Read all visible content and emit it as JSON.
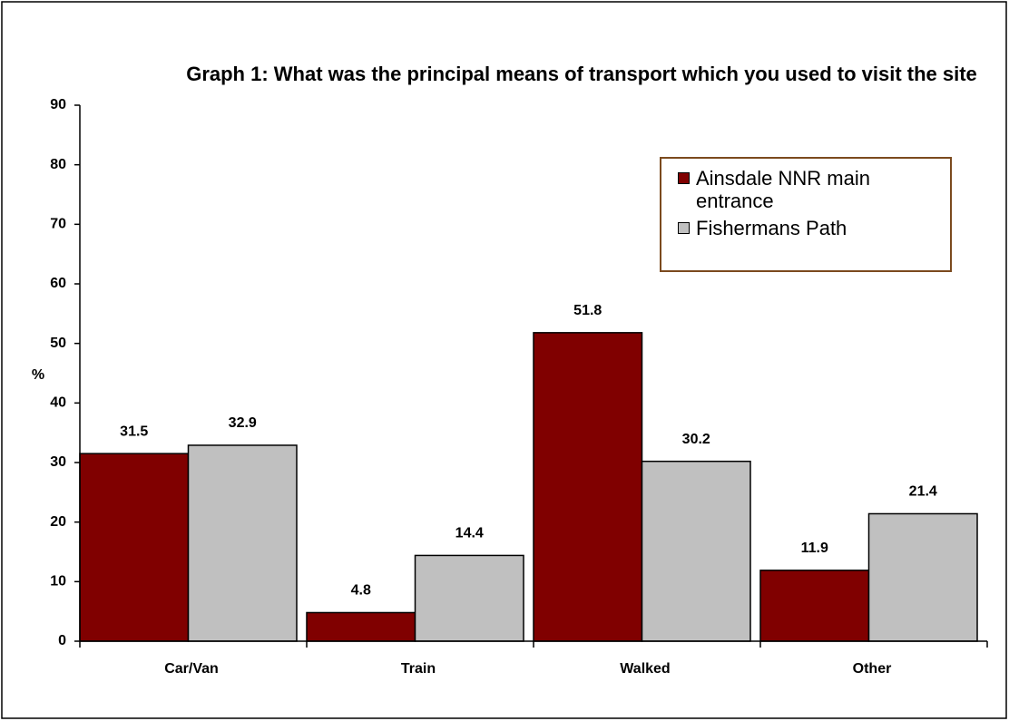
{
  "chart_data": {
    "type": "bar",
    "title": "Graph 1: What was the principal means of transport which you used to visit the site",
    "y_label": "%",
    "categories": [
      "Car/Van",
      "Train",
      "Walked",
      "Other"
    ],
    "series": [
      {
        "name": "Ainsdale NNR main entrance",
        "color": "#800000",
        "values": [
          31.5,
          4.8,
          51.8,
          11.9
        ]
      },
      {
        "name": "Fishermans Path",
        "color": "#c0c0c0",
        "values": [
          32.9,
          14.4,
          30.2,
          21.4
        ]
      }
    ],
    "ylim": [
      0,
      90
    ],
    "yticks": [
      0,
      10,
      20,
      30,
      40,
      50,
      60,
      70,
      80,
      90
    ],
    "grid": false,
    "legend": "upper right"
  }
}
